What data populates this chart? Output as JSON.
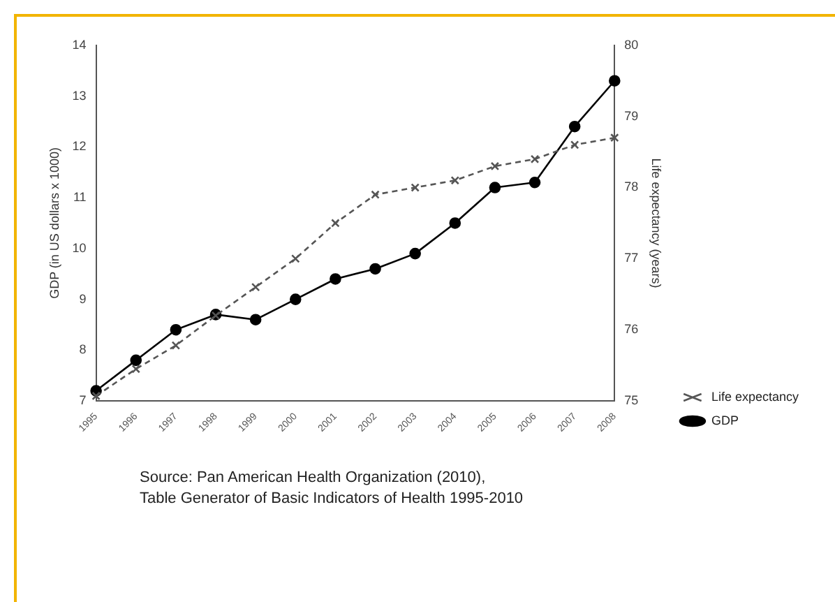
{
  "chart_data": {
    "type": "line",
    "ylabel": "GDP (in US dollars x 1000)",
    "y2label": "Life expectancy (years)",
    "categories": [
      "1995",
      "1996",
      "1997",
      "1998",
      "1999",
      "2000",
      "2001",
      "2002",
      "2003",
      "2004",
      "2005",
      "2006",
      "2007",
      "2008"
    ],
    "series": [
      {
        "name": "GDP",
        "color": "#000000",
        "marker": "circle",
        "line_style": "solid",
        "values": [
          7.2,
          7.8,
          8.4,
          8.7,
          8.6,
          9.0,
          9.4,
          9.6,
          9.9,
          10.5,
          11.2,
          11.3,
          12.4,
          13.3
        ]
      },
      {
        "name": "Life expectancy",
        "color": "#555555",
        "marker": "cross",
        "line_style": "dashed",
        "axis": "y2",
        "values": [
          75.07,
          75.45,
          75.78,
          76.2,
          76.6,
          77.0,
          77.5,
          77.9,
          78.0,
          78.1,
          78.3,
          78.4,
          78.6,
          78.7
        ]
      }
    ],
    "ylim": [
      7,
      14
    ],
    "yticks": [
      7,
      8,
      9,
      10,
      11,
      12,
      13,
      14
    ],
    "y2lim": [
      75,
      80
    ],
    "y2ticks": [
      75,
      76,
      77,
      78,
      79,
      80
    ],
    "grid": false,
    "legend": "bottom right",
    "annotations": [
      "Source: Pan American Health Organization (2010),\nTable Generator of Basic Indicators  of Health 1995-2010"
    ]
  }
}
